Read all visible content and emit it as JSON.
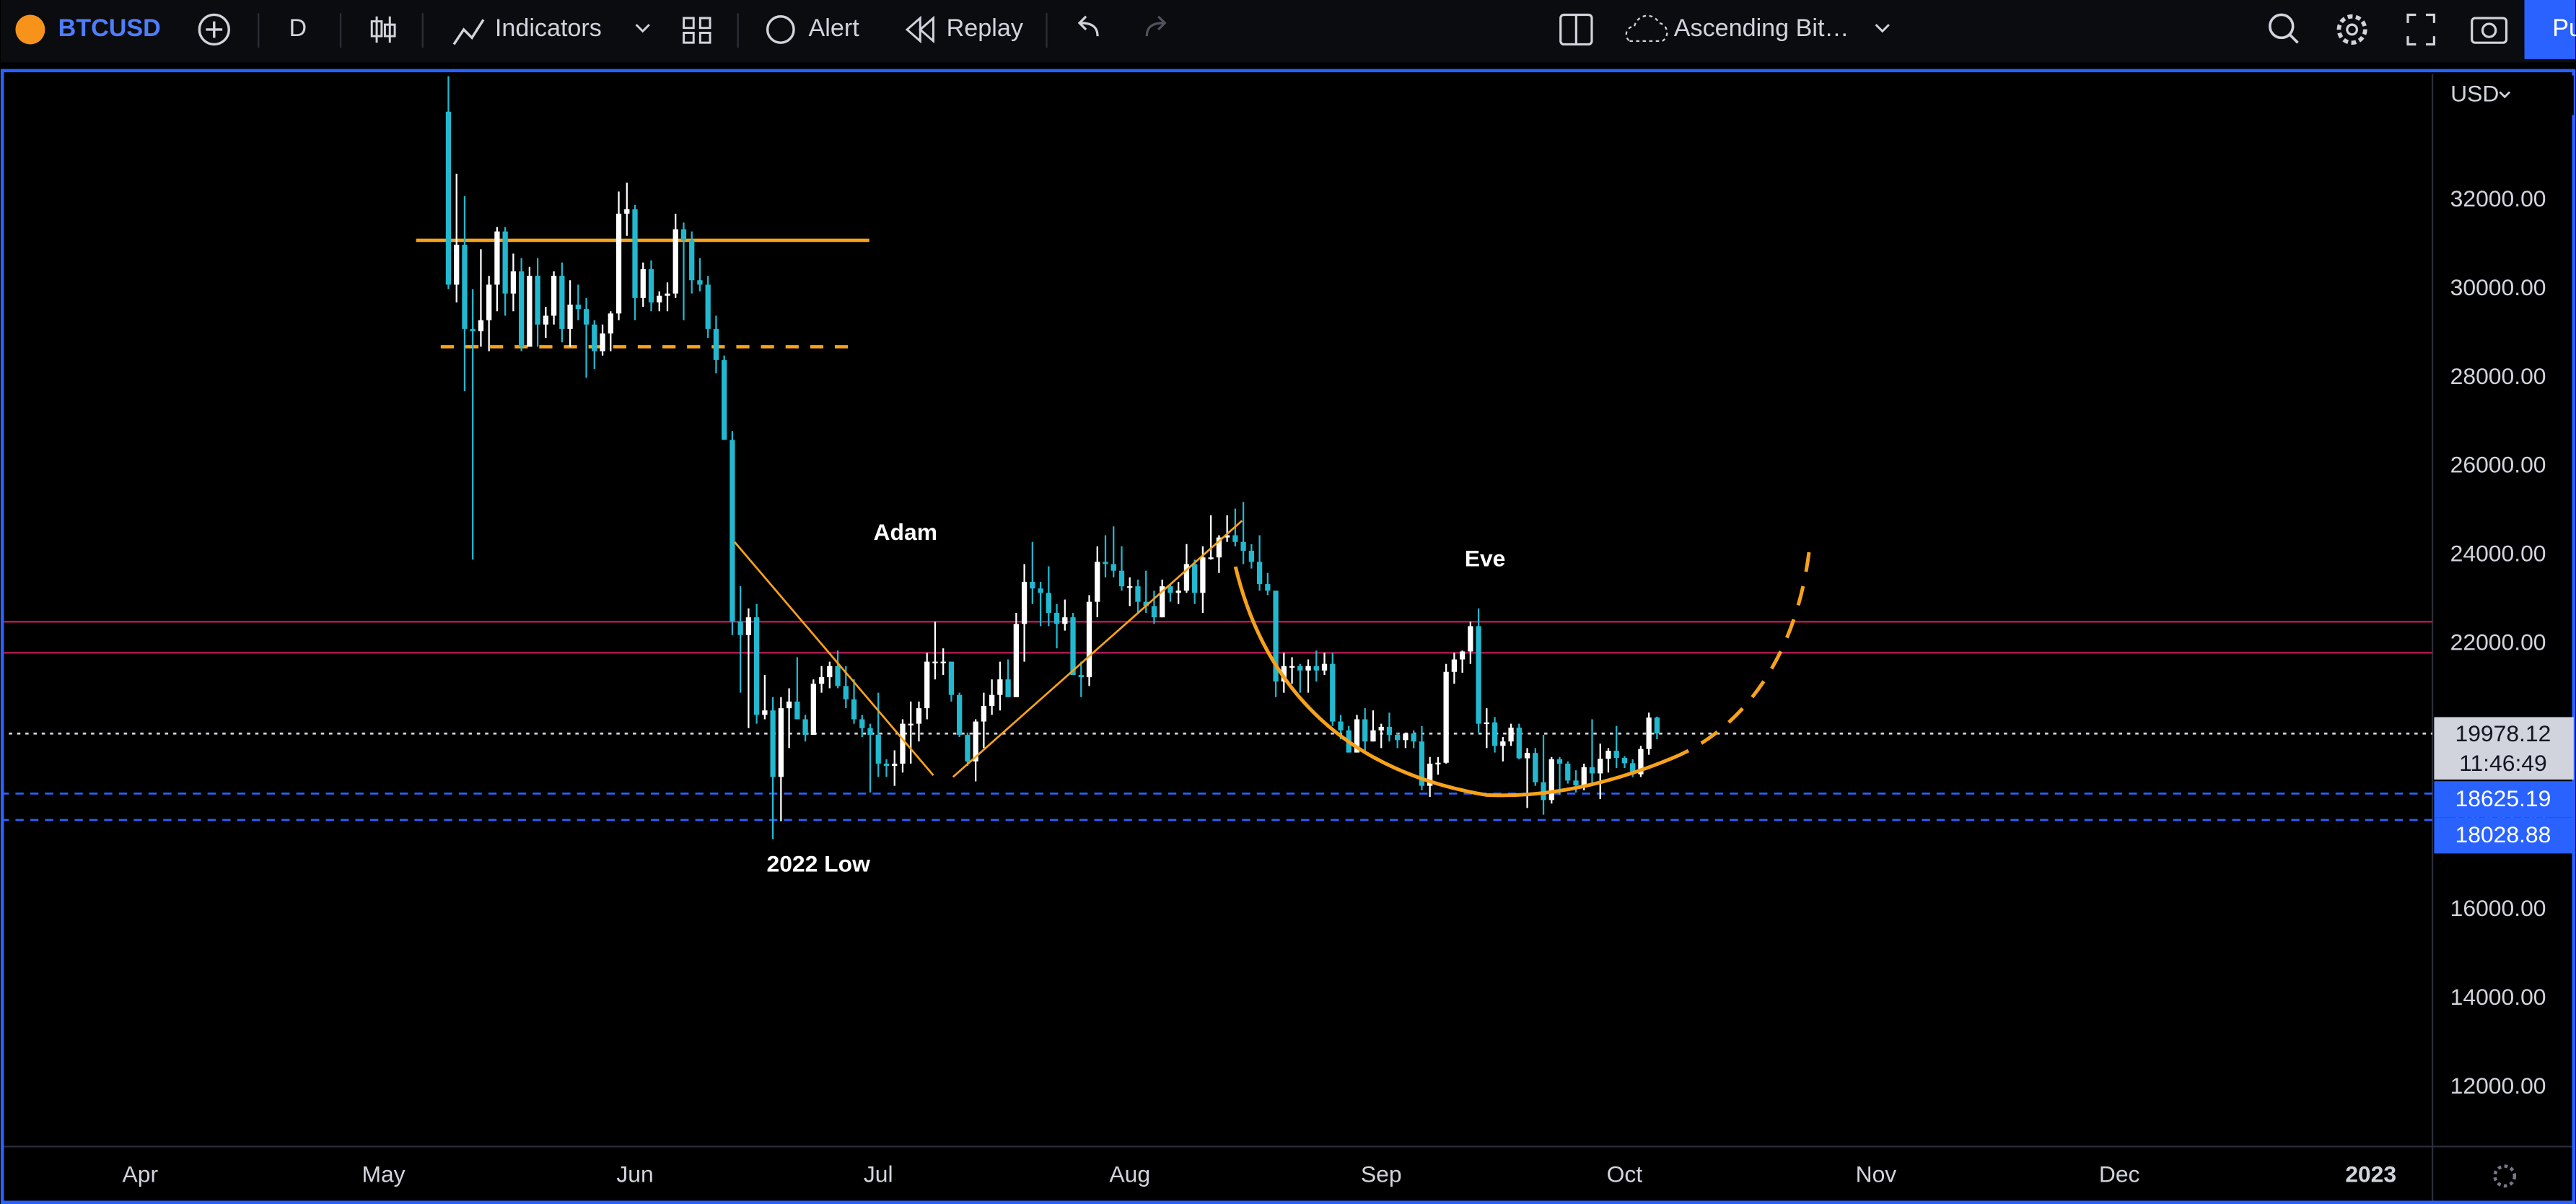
{
  "toolbar": {
    "symbol": "BTCUSD",
    "interval": "D",
    "indicators": "Indicators",
    "alert": "Alert",
    "replay": "Replay",
    "layout": "Ascending Bit…",
    "publish": "Pu"
  },
  "chart_data": {
    "type": "candlestick",
    "currency": "USD",
    "up_color": "#ffffff",
    "down_color": "#22b8cf",
    "xlim": [
      -17.2,
      282.6
    ],
    "xticks": [
      {
        "value": 0,
        "label": "Apr"
      },
      {
        "value": 30,
        "label": "May"
      },
      {
        "value": 61,
        "label": "Jun"
      },
      {
        "value": 91,
        "label": "Jul"
      },
      {
        "value": 122,
        "label": "Aug"
      },
      {
        "value": 153,
        "label": "Sep"
      },
      {
        "value": 183,
        "label": "Oct"
      },
      {
        "value": 214,
        "label": "Nov"
      },
      {
        "value": 244,
        "label": "Dec"
      },
      {
        "value": 275,
        "label": "2023"
      }
    ],
    "ylim": [
      10667,
      34852
    ],
    "yticks": [
      {
        "value": 12000,
        "label": "12000.00"
      },
      {
        "value": 14000,
        "label": "14000.00"
      },
      {
        "value": 16000,
        "label": "16000.00"
      },
      {
        "value": 18000,
        "label": "18000.00"
      },
      {
        "value": 20000,
        "label": "20000.00"
      },
      {
        "value": 22000,
        "label": "22000.00"
      },
      {
        "value": 24000,
        "label": "24000.00"
      },
      {
        "value": 26000,
        "label": "26000.00"
      },
      {
        "value": 28000,
        "label": "28000.00"
      },
      {
        "value": 30000,
        "label": "30000.00"
      },
      {
        "value": 32000,
        "label": "32000.00"
      }
    ],
    "grid": false,
    "x": [
      38,
      39,
      40,
      41,
      42,
      43,
      44,
      45,
      46,
      47,
      48,
      49,
      50,
      51,
      52,
      53,
      54,
      55,
      56,
      57,
      58,
      59,
      60,
      61,
      62,
      63,
      64,
      65,
      66,
      67,
      68,
      69,
      70,
      71,
      72,
      73,
      74,
      75,
      76,
      77,
      78,
      79,
      80,
      81,
      82,
      83,
      84,
      85,
      86,
      87,
      88,
      89,
      90,
      91,
      92,
      93,
      94,
      95,
      96,
      97,
      98,
      99,
      100,
      101,
      102,
      103,
      104,
      105,
      106,
      107,
      108,
      109,
      110,
      111,
      112,
      113,
      114,
      115,
      116,
      117,
      118,
      119,
      120,
      121,
      122,
      123,
      124,
      125,
      126,
      127,
      128,
      129,
      130,
      131,
      132,
      133,
      134,
      135,
      136,
      137,
      138,
      139,
      140,
      141,
      142,
      143,
      144,
      145,
      146,
      147,
      148,
      149,
      150,
      151,
      152,
      153,
      154,
      155,
      156,
      157,
      158,
      159,
      160,
      161,
      162,
      163,
      164,
      165,
      166,
      167,
      168,
      169,
      170,
      171,
      172,
      173,
      174,
      175,
      176,
      177,
      178,
      179,
      180,
      181,
      182,
      183,
      184,
      185,
      186,
      187
    ],
    "open": [
      34000,
      30100,
      31000,
      29100,
      29050,
      29300,
      30100,
      31300,
      29900,
      30400,
      28700,
      30300,
      29200,
      29400,
      30300,
      29100,
      29650,
      29550,
      29200,
      28600,
      29000,
      29450,
      31700,
      31800,
      29800,
      30450,
      29700,
      29850,
      29900,
      31350,
      31100,
      30200,
      30100,
      29100,
      28400,
      26600,
      22500,
      22200,
      22600,
      20400,
      20500,
      19000,
      20550,
      20700,
      20300,
      19950,
      21100,
      21250,
      21500,
      21050,
      20750,
      20300,
      20100,
      19950,
      19300,
      19250,
      19300,
      20200,
      20200,
      20550,
      21600,
      21600,
      21600,
      20850,
      19950,
      19350,
      20250,
      20600,
      20850,
      21200,
      20800,
      22450,
      23400,
      23250,
      23150,
      22700,
      22450,
      22600,
      21300,
      21250,
      22950,
      23850,
      23800,
      23650,
      23300,
      23300,
      22950,
      22850,
      22600,
      23300,
      23150,
      23200,
      23800,
      23150,
      23950,
      23950,
      24400,
      24450,
      24300,
      24100,
      23850,
      23350,
      23200,
      21150,
      21500,
      21500,
      21400,
      21500,
      21400,
      21550,
      20250,
      20050,
      19550,
      20300,
      19800,
      20050,
      20130,
      19950,
      19830,
      19980,
      19800,
      18800,
      19300,
      19320,
      21370,
      21650,
      21830,
      22400,
      20200,
      20230,
      19700,
      19800,
      20110,
      19420,
      19540,
      18880,
      18480,
      19400,
      19300,
      18920,
      18810,
      19220,
      19080,
      19410,
      19590,
      19430,
      19310,
      19060,
      19630,
      20340
    ],
    "high": [
      34800,
      32600,
      32100,
      30000,
      30900,
      30300,
      31400,
      31400,
      30800,
      30700,
      30500,
      30700,
      29600,
      30400,
      30600,
      30200,
      30100,
      29800,
      29300,
      29200,
      29500,
      32200,
      32400,
      31900,
      30600,
      30650,
      29950,
      30150,
      31700,
      31500,
      31300,
      30700,
      30300,
      29400,
      28500,
      26800,
      23300,
      22800,
      22900,
      21300,
      20800,
      20800,
      21000,
      21700,
      20400,
      21200,
      21500,
      21600,
      21850,
      21500,
      21200,
      20400,
      20200,
      20900,
      19400,
      19600,
      20300,
      20700,
      20700,
      21800,
      22500,
      21900,
      21600,
      20900,
      20000,
      20300,
      20900,
      21200,
      21600,
      21650,
      22700,
      23800,
      24300,
      23400,
      23750,
      22900,
      23000,
      22700,
      21600,
      23100,
      24200,
      24450,
      24650,
      24200,
      23500,
      23450,
      23650,
      23200,
      23450,
      23350,
      23400,
      24250,
      23900,
      24200,
      24900,
      24450,
      24900,
      25050,
      25200,
      24250,
      24450,
      23600,
      23200,
      21800,
      21700,
      21550,
      21650,
      21850,
      21800,
      21800,
      20400,
      20150,
      20400,
      20550,
      20500,
      20200,
      20450,
      20000,
      20000,
      20050,
      20150,
      19450,
      19450,
      21550,
      21800,
      21850,
      22500,
      22800,
      20550,
      20350,
      19900,
      20200,
      20200,
      19650,
      19650,
      19950,
      19450,
      19450,
      19350,
      19150,
      19300,
      20300,
      19750,
      19650,
      20150,
      19470,
      19400,
      19700,
      20450,
      20360
    ],
    "low": [
      30000,
      29700,
      27700,
      23900,
      28700,
      28600,
      29500,
      29400,
      29500,
      28600,
      28700,
      28700,
      28900,
      29200,
      28800,
      28700,
      29300,
      28000,
      28200,
      28500,
      28600,
      29300,
      31200,
      29300,
      29600,
      29500,
      29500,
      29500,
      29800,
      29300,
      29900,
      29950,
      28900,
      28100,
      26600,
      22200,
      20900,
      20100,
      20200,
      20300,
      17600,
      18000,
      19650,
      20300,
      19800,
      19950,
      20900,
      21000,
      21000,
      20550,
      20200,
      19900,
      18650,
      19000,
      19000,
      18800,
      19100,
      19300,
      19800,
      20300,
      21200,
      21300,
      20700,
      19900,
      19250,
      18900,
      19650,
      20400,
      20500,
      20800,
      20800,
      21600,
      22900,
      22400,
      22400,
      21900,
      22300,
      21300,
      20800,
      21050,
      22600,
      23500,
      23500,
      23200,
      22850,
      22700,
      22700,
      22450,
      22600,
      22950,
      22900,
      23150,
      22900,
      22700,
      23900,
      23600,
      24300,
      24200,
      23800,
      23700,
      23200,
      23100,
      20800,
      20900,
      21100,
      20900,
      20900,
      21150,
      21300,
      20150,
      19850,
      19550,
      19550,
      19550,
      19800,
      19650,
      19800,
      19650,
      19650,
      19650,
      18700,
      18550,
      19050,
      19300,
      21100,
      21350,
      21550,
      20000,
      19650,
      19550,
      19350,
      19700,
      19400,
      18300,
      18800,
      18150,
      18400,
      18600,
      18850,
      18650,
      18700,
      18850,
      18500,
      19100,
      19200,
      19200,
      19000,
      19000,
      19500,
      19850
    ],
    "close": [
      30100,
      31000,
      29100,
      29050,
      29300,
      30100,
      31300,
      29900,
      30400,
      28700,
      30300,
      29200,
      29400,
      30300,
      29100,
      29650,
      29550,
      29200,
      28600,
      29000,
      29450,
      31700,
      31800,
      29800,
      30450,
      29700,
      29850,
      29900,
      31350,
      31100,
      30200,
      30100,
      29100,
      28400,
      26600,
      22500,
      22200,
      22600,
      20400,
      20500,
      19000,
      20550,
      20700,
      20300,
      19950,
      21100,
      21250,
      21500,
      21050,
      20750,
      20300,
      20100,
      19950,
      19300,
      19250,
      19300,
      20200,
      20200,
      20550,
      21600,
      21600,
      21600,
      20850,
      19950,
      19350,
      20250,
      20600,
      20850,
      21200,
      20800,
      22450,
      23400,
      23250,
      23150,
      22700,
      22450,
      22600,
      21300,
      21250,
      22950,
      23850,
      23800,
      23650,
      23300,
      23300,
      22950,
      22850,
      22600,
      23300,
      23150,
      23200,
      23800,
      23150,
      23950,
      23950,
      24400,
      24450,
      24300,
      24100,
      23850,
      23350,
      23200,
      21150,
      21500,
      21500,
      21400,
      21500,
      21400,
      21550,
      20250,
      20050,
      19550,
      20300,
      19800,
      20050,
      20130,
      19950,
      19830,
      19980,
      19800,
      18800,
      19300,
      19320,
      21370,
      21650,
      21830,
      22400,
      20200,
      20230,
      19700,
      19800,
      20110,
      19420,
      19540,
      18880,
      18480,
      19400,
      19300,
      18920,
      18810,
      19220,
      19080,
      19410,
      19590,
      19430,
      19310,
      19060,
      19630,
      20340,
      19978.12
    ],
    "drawn_levels": [
      {
        "value": 31100,
        "color": "#f7a21b",
        "dash": false
      },
      {
        "value": 28700,
        "color": "#f7a21b",
        "dash": true
      },
      {
        "value": 22500,
        "color": "#c2185b",
        "dash": false
      },
      {
        "value": 21800,
        "color": "#c2185b",
        "dash": false
      }
    ],
    "price_lines": [
      {
        "value": 19978.12,
        "color": "#d1d4dc"
      },
      {
        "value": 18625.19,
        "color": "#2962ff"
      },
      {
        "value": 18028.88,
        "color": "#2962ff"
      }
    ],
    "countdown": "11:46:49",
    "annotations": [
      "Adam",
      "Eve",
      "2022 Low"
    ]
  }
}
